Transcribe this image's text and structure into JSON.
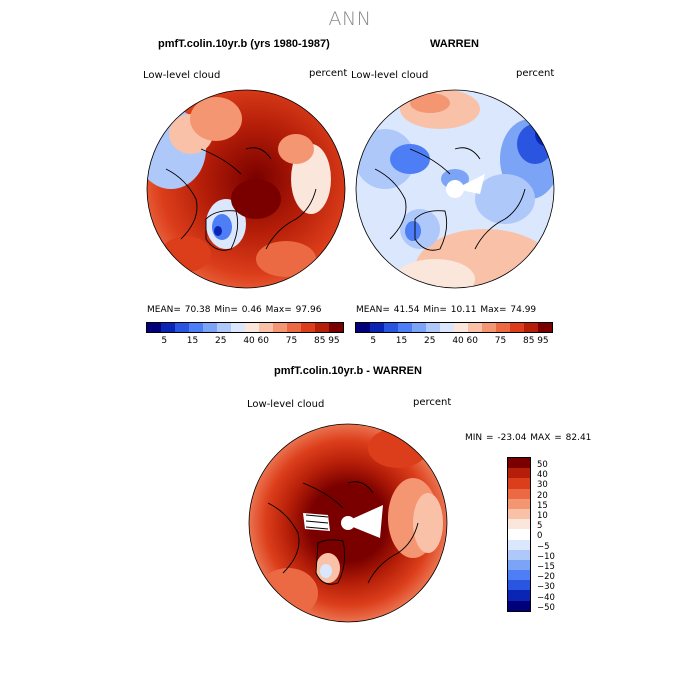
{
  "title": "ANN",
  "panels": [
    {
      "title": "pmfT.colin.10yr.b (yrs 1980-1987)",
      "variable": "Low-level cloud",
      "units": "percent",
      "stats": "MEAN=  70.38  Min=   0.46  Max=  97.96",
      "tone": "high"
    },
    {
      "title": "WARREN",
      "variable": "Low-level cloud",
      "units": "percent",
      "stats": "MEAN=  41.54  Min=  10.11  Max=  74.99",
      "tone": "low"
    }
  ],
  "colorbar": {
    "colors": [
      "#00007a",
      "#0a25b4",
      "#2a55e0",
      "#4d7ef5",
      "#7ba3f6",
      "#aec8fa",
      "#dbe7fc",
      "#fbe6dc",
      "#f9c2a8",
      "#f59672",
      "#eb6a44",
      "#dc3e1b",
      "#b51e08",
      "#7a0000"
    ],
    "labels": [
      "5",
      "15",
      "25",
      "40",
      "60",
      "75",
      "85",
      "95"
    ]
  },
  "diff_panel": {
    "title": "pmfT.colin.10yr.b - WARREN",
    "variable": "Low-level cloud",
    "units": "percent",
    "minmax": "MIN = -23.04  MAX =  82.41",
    "colorbar": {
      "colors": [
        "#7a0000",
        "#b51e08",
        "#dc3e1b",
        "#eb6a44",
        "#f59672",
        "#f9c2a8",
        "#fbe6dc",
        "#ffffff",
        "#dbe7fc",
        "#aec8fa",
        "#7ba3f6",
        "#4d7ef5",
        "#2a55e0",
        "#0a25b4",
        "#00007a"
      ],
      "labels": [
        "50",
        "40",
        "30",
        "20",
        "15",
        "10",
        "5",
        "0",
        "−5",
        "−10",
        "−15",
        "−20",
        "−30",
        "−40",
        "−50"
      ]
    }
  }
}
